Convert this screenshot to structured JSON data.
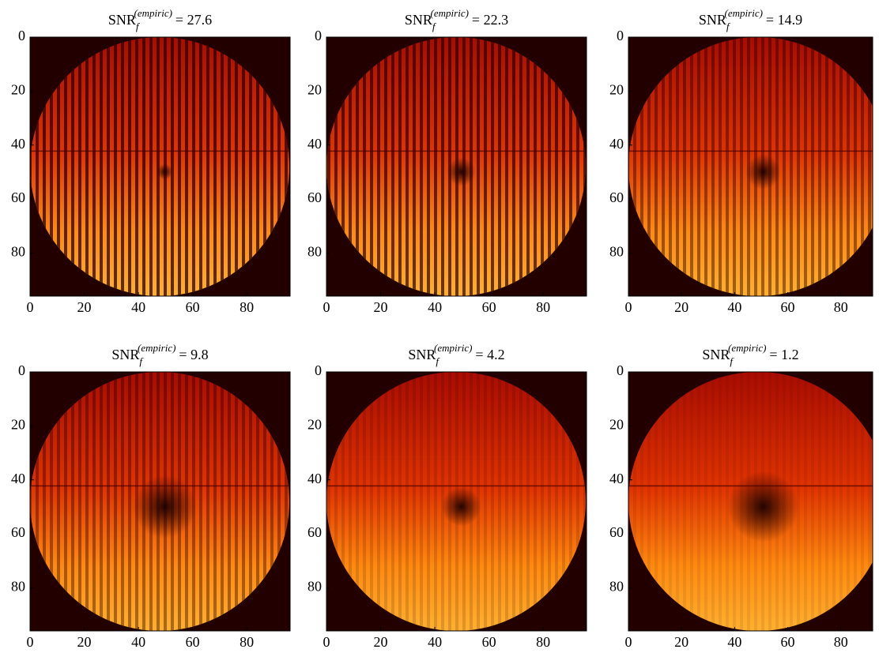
{
  "chart_data": [
    {
      "type": "image",
      "title": {
        "base": "SNR",
        "sub": "f",
        "sup": "(empiric)",
        "rest": "= 27.6"
      },
      "xlim": [
        0,
        96
      ],
      "ylim": [
        96,
        0
      ],
      "xticks": [
        0,
        20,
        40,
        60,
        80
      ],
      "yticks": [
        0,
        20,
        40,
        60,
        80
      ]
    },
    {
      "type": "image",
      "title": {
        "base": "SNR",
        "sub": "f",
        "sup": "(empiric)",
        "rest": "= 22.3"
      },
      "xlim": [
        0,
        96
      ],
      "ylim": [
        96,
        0
      ],
      "xticks": [
        0,
        20,
        40,
        60,
        80
      ],
      "yticks": [
        0,
        20,
        40,
        60,
        80
      ]
    },
    {
      "type": "image",
      "title": {
        "base": "SNR",
        "sub": "f",
        "sup": "(empiric)",
        "rest": "= 14.9"
      },
      "xlim": [
        0,
        92
      ],
      "ylim": [
        96,
        0
      ],
      "xticks": [
        0,
        20,
        40,
        60,
        80
      ],
      "yticks": [
        0,
        20,
        40,
        60,
        80
      ]
    },
    {
      "type": "image",
      "title": {
        "base": "SNR",
        "sub": "f",
        "sup": "(empiric)",
        "rest": "= 9.8"
      },
      "xlim": [
        0,
        96
      ],
      "ylim": [
        96,
        0
      ],
      "xticks": [
        0,
        20,
        40,
        60,
        80
      ],
      "yticks": [
        0,
        20,
        40,
        60,
        80
      ]
    },
    {
      "type": "image",
      "title": {
        "base": "SNR",
        "sub": "f",
        "sup": "(empiric)",
        "rest": "= 4.2"
      },
      "xlim": [
        0,
        96
      ],
      "ylim": [
        96,
        0
      ],
      "xticks": [
        0,
        20,
        40,
        60,
        80
      ],
      "yticks": [
        0,
        20,
        40,
        60,
        80
      ]
    },
    {
      "type": "image",
      "title": {
        "base": "SNR",
        "sub": "f",
        "sup": "(empiric)",
        "rest": "= 1.2"
      },
      "xlim": [
        0,
        92
      ],
      "ylim": [
        96,
        0
      ],
      "xticks": [
        0,
        20,
        40,
        60,
        80
      ],
      "yticks": [
        0,
        20,
        40,
        60,
        80
      ]
    }
  ]
}
